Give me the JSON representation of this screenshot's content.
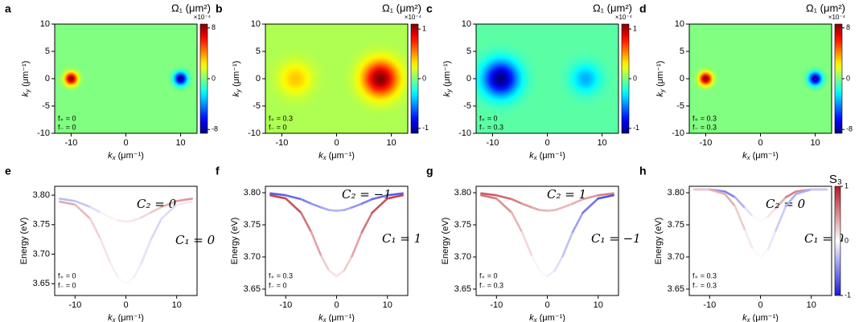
{
  "chart_data": [
    {
      "type": "heatmap",
      "label": "a",
      "colormap": "jet",
      "colorbar_title": "Ω₁ (μm²)",
      "colorbar_scale": "×10⁻⁴",
      "xlabel": {
        "base": "k",
        "sub": "x",
        "unit": " (μm⁻¹)"
      },
      "ylabel": {
        "base": "k",
        "sub": "y",
        "unit": " (μm⁻¹)"
      },
      "xlim": [
        -13,
        13
      ],
      "ylim": [
        -10,
        10
      ],
      "xticks": [
        -10,
        0,
        10
      ],
      "yticks": [
        -10,
        -5,
        0,
        5,
        10
      ],
      "zlim": [
        -8.6,
        8.6
      ],
      "zticks": [
        -8,
        0,
        8
      ],
      "background": 0,
      "peaks": [
        {
          "x": -10,
          "y": 0,
          "value": 8.6,
          "width": 0.8
        },
        {
          "x": 10,
          "y": 0,
          "value": -8.6,
          "width": 0.8
        }
      ],
      "annotations": [
        "f₊ = 0",
        "f₋ = 0"
      ]
    },
    {
      "type": "heatmap",
      "label": "b",
      "colormap": "jet",
      "colorbar_title": "Ω₁ (μm²)",
      "colorbar_scale": "×10⁻⁴",
      "xlabel": {
        "base": "k",
        "sub": "x",
        "unit": " (μm⁻¹)"
      },
      "ylabel": {
        "base": "k",
        "sub": "y",
        "unit": " (μm⁻¹)"
      },
      "xlim": [
        -13,
        13
      ],
      "ylim": [
        -10,
        10
      ],
      "xticks": [
        -10,
        0,
        10
      ],
      "yticks": [
        -10,
        -5,
        0,
        5,
        10
      ],
      "zlim": [
        -1.1,
        1.1
      ],
      "zticks": [
        -1,
        0,
        1
      ],
      "background": 0.1,
      "peaks": [
        {
          "x": -7.5,
          "y": 0,
          "value": 0.4,
          "width": 2.0
        },
        {
          "x": 8,
          "y": 0,
          "value": 1.1,
          "width": 2.2
        }
      ],
      "annotations": [
        "f₊ = 0.3",
        "f₋ = 0"
      ]
    },
    {
      "type": "heatmap",
      "label": "c",
      "colormap": "jet",
      "colorbar_title": "Ω₁ (μm²)",
      "colorbar_scale": "×10⁻⁴",
      "xlabel": {
        "base": "k",
        "sub": "x",
        "unit": " (μm⁻¹)"
      },
      "ylabel": {
        "base": "k",
        "sub": "y",
        "unit": " (μm⁻¹)"
      },
      "xlim": [
        -13,
        13
      ],
      "ylim": [
        -10,
        10
      ],
      "xticks": [
        -10,
        0,
        10
      ],
      "yticks": [
        -10,
        -5,
        0,
        5,
        10
      ],
      "zlim": [
        -1.1,
        1.1
      ],
      "zticks": [
        -1,
        0,
        1
      ],
      "background": -0.08,
      "peaks": [
        {
          "x": -8.5,
          "y": 0,
          "value": -1.1,
          "width": 2.2
        },
        {
          "x": 7,
          "y": 0,
          "value": -0.45,
          "width": 1.8
        }
      ],
      "annotations": [
        "f₊ = 0",
        "f₋ = 0.3"
      ]
    },
    {
      "type": "heatmap",
      "label": "d",
      "colormap": "jet",
      "colorbar_title": "Ω₁ (μm²)",
      "colorbar_scale": "×10⁻⁴",
      "xlabel": {
        "base": "k",
        "sub": "x",
        "unit": " (μm⁻¹)"
      },
      "ylabel": {
        "base": "k",
        "sub": "y",
        "unit": " (μm⁻¹)"
      },
      "xlim": [
        -13,
        13
      ],
      "ylim": [
        -10,
        10
      ],
      "xticks": [
        -10,
        0,
        10
      ],
      "yticks": [
        -10,
        -5,
        0,
        5,
        10
      ],
      "zlim": [
        -8.6,
        8.6
      ],
      "zticks": [
        -8,
        0,
        8
      ],
      "background": 0,
      "peaks": [
        {
          "x": -10,
          "y": 0,
          "value": 8.6,
          "width": 0.8
        },
        {
          "x": 10,
          "y": 0,
          "value": -8.6,
          "width": 0.8
        }
      ],
      "annotations": [
        "f₊ = 0.3",
        "f₋ = 0.3"
      ]
    },
    {
      "type": "line",
      "label": "e",
      "colormap": "bwr",
      "slim": [
        -1,
        1
      ],
      "xlabel": {
        "base": "k",
        "sub": "x",
        "unit": " (μm⁻¹)"
      },
      "ylabel": "Energy (eV)",
      "xlim": [
        -14,
        14
      ],
      "ylim": [
        3.63,
        3.815
      ],
      "xticks": [
        -10,
        0,
        10
      ],
      "yticks": [
        3.65,
        {
          "value": 3.7,
          "label": "3.70"
        },
        3.75,
        {
          "value": 3.8,
          "label": "3.80"
        }
      ],
      "series": [
        {
          "name": "C₂ = 0",
          "x": [
            -13,
            -10,
            -7,
            -5,
            -3,
            -1.5,
            0,
            1.5,
            3,
            5,
            7,
            10,
            13
          ],
          "values": [
            3.794,
            3.79,
            3.78,
            3.771,
            3.762,
            3.757,
            3.755,
            3.757,
            3.762,
            3.771,
            3.78,
            3.79,
            3.794
          ],
          "s3": [
            -0.3,
            -0.3,
            -0.2,
            -0.1,
            0,
            0.1,
            0.1,
            0.1,
            0.15,
            0.2,
            0.3,
            0.4,
            0.5
          ]
        },
        {
          "name": "C₁ = 0",
          "x": [
            -13,
            -10,
            -7,
            -5,
            -3,
            -1.5,
            0,
            1.5,
            3,
            5,
            7,
            10,
            13
          ],
          "values": [
            3.789,
            3.784,
            3.76,
            3.726,
            3.684,
            3.66,
            3.65,
            3.66,
            3.684,
            3.726,
            3.76,
            3.784,
            3.789
          ],
          "s3": [
            0.4,
            0.35,
            0.25,
            0.15,
            0.1,
            0.05,
            0,
            -0.05,
            -0.1,
            -0.15,
            -0.2,
            -0.1,
            0.3
          ]
        }
      ],
      "annotations": [
        "f₊ = 0",
        "f₋ = 0"
      ]
    },
    {
      "type": "line",
      "label": "f",
      "colormap": "bwr",
      "slim": [
        -1,
        1
      ],
      "xlabel": {
        "base": "k",
        "sub": "x",
        "unit": " (μm⁻¹)"
      },
      "ylabel": "Energy (eV)",
      "xlim": [
        -14,
        14
      ],
      "ylim": [
        3.64,
        3.81
      ],
      "xticks": [
        -10,
        0,
        10
      ],
      "yticks": [
        3.65,
        {
          "value": 3.7,
          "label": "3.70"
        },
        3.75,
        {
          "value": 3.8,
          "label": "3.80"
        }
      ],
      "series": [
        {
          "name": "C₂ = −1",
          "x": [
            -13,
            -10,
            -7,
            -5,
            -3,
            -1.5,
            0,
            1.5,
            3,
            5,
            7,
            10,
            13
          ],
          "values": [
            3.799,
            3.796,
            3.79,
            3.783,
            3.777,
            3.773,
            3.772,
            3.773,
            3.777,
            3.783,
            3.79,
            3.796,
            3.799
          ],
          "s3": [
            -0.7,
            -0.7,
            -0.6,
            -0.5,
            -0.4,
            -0.35,
            -0.3,
            -0.35,
            -0.4,
            -0.5,
            -0.6,
            -0.7,
            -0.7
          ]
        },
        {
          "name": "C₁ = 1",
          "x": [
            -13,
            -10,
            -7,
            -5,
            -3,
            -1.5,
            0,
            1.5,
            3,
            5,
            7,
            10,
            13
          ],
          "values": [
            3.796,
            3.791,
            3.769,
            3.739,
            3.701,
            3.679,
            3.67,
            3.679,
            3.701,
            3.739,
            3.769,
            3.791,
            3.796
          ],
          "s3": [
            0.8,
            0.8,
            0.7,
            0.5,
            0.3,
            0.15,
            0.1,
            0.15,
            0.3,
            0.5,
            0.7,
            0.8,
            0.8
          ]
        }
      ],
      "annotations": [
        "f₊ = 0.3",
        "f₋ = 0"
      ]
    },
    {
      "type": "line",
      "label": "g",
      "colormap": "bwr",
      "slim": [
        -1,
        1
      ],
      "xlabel": {
        "base": "k",
        "sub": "x",
        "unit": " (μm⁻¹)"
      },
      "ylabel": "Energy (eV)",
      "xlim": [
        -14,
        14
      ],
      "ylim": [
        3.64,
        3.81
      ],
      "xticks": [
        -10,
        0,
        10
      ],
      "yticks": [
        3.65,
        {
          "value": 3.7,
          "label": "3.70"
        },
        3.75,
        {
          "value": 3.8,
          "label": "3.80"
        }
      ],
      "series": [
        {
          "name": "C₂ = 1",
          "x": [
            -13,
            -10,
            -7,
            -5,
            -3,
            -1.5,
            0,
            1.5,
            3,
            5,
            7,
            10,
            13
          ],
          "values": [
            3.799,
            3.796,
            3.79,
            3.783,
            3.777,
            3.773,
            3.772,
            3.773,
            3.777,
            3.783,
            3.79,
            3.796,
            3.799
          ],
          "s3": [
            0.7,
            0.7,
            0.6,
            0.5,
            0.4,
            0.35,
            0.3,
            0.3,
            0.3,
            0.3,
            0.4,
            0.5,
            0.6
          ]
        },
        {
          "name": "C₁ = −1",
          "x": [
            -13,
            -10,
            -7,
            -5,
            -3,
            -1.5,
            0,
            1.5,
            3,
            5,
            7,
            10,
            13
          ],
          "values": [
            3.796,
            3.791,
            3.769,
            3.739,
            3.701,
            3.679,
            3.67,
            3.679,
            3.701,
            3.739,
            3.769,
            3.791,
            3.796
          ],
          "s3": [
            0.6,
            0.55,
            0.4,
            0.25,
            0.1,
            0,
            -0.05,
            -0.1,
            -0.2,
            -0.35,
            -0.5,
            -0.7,
            -0.8
          ]
        }
      ],
      "annotations": [
        "f₊ = 0",
        "f₋ = 0.3"
      ]
    },
    {
      "type": "line",
      "label": "h",
      "colormap": "bwr",
      "slim": [
        -1,
        1
      ],
      "xlabel": {
        "base": "k",
        "sub": "x",
        "unit": " (μm⁻¹)"
      },
      "ylabel": "Energy (eV)",
      "xlim": [
        -14,
        14
      ],
      "ylim": [
        3.64,
        3.81
      ],
      "xticks": [
        -10,
        0,
        10
      ],
      "yticks": [
        3.65,
        {
          "value": 3.7,
          "label": "3.70"
        },
        3.75,
        {
          "value": 3.8,
          "label": "3.80"
        }
      ],
      "colorbar_title": "S₃",
      "zlim": [
        -1,
        1
      ],
      "zticks": [
        -1,
        0,
        1
      ],
      "series": [
        {
          "name": "C₂ = 0",
          "x": [
            -13,
            -10,
            -7,
            -5,
            -3,
            -1.5,
            0,
            1.5,
            3,
            5,
            7,
            10,
            13
          ],
          "values": [
            3.805,
            3.805,
            3.802,
            3.793,
            3.776,
            3.763,
            3.757,
            3.763,
            3.776,
            3.793,
            3.802,
            3.805,
            3.805
          ],
          "s3": [
            -0.3,
            -0.4,
            -0.6,
            -0.5,
            -0.2,
            -0.05,
            0,
            0.05,
            0.2,
            0.5,
            0.6,
            0.4,
            0.3
          ]
        },
        {
          "name": "C₁ = 0",
          "x": [
            -13,
            -10,
            -7,
            -5,
            -3,
            -1.5,
            0,
            1.5,
            3,
            5,
            7,
            10,
            13
          ],
          "values": [
            3.805,
            3.805,
            3.798,
            3.779,
            3.741,
            3.712,
            3.7,
            3.712,
            3.741,
            3.779,
            3.798,
            3.805,
            3.805
          ],
          "s3": [
            0.2,
            0.3,
            0.4,
            0.3,
            0.15,
            0.05,
            0,
            -0.05,
            -0.15,
            -0.3,
            -0.4,
            -0.3,
            -0.2
          ]
        }
      ],
      "annotations": [
        "f₊ = 0.3",
        "f₋ = 0.3"
      ]
    }
  ]
}
